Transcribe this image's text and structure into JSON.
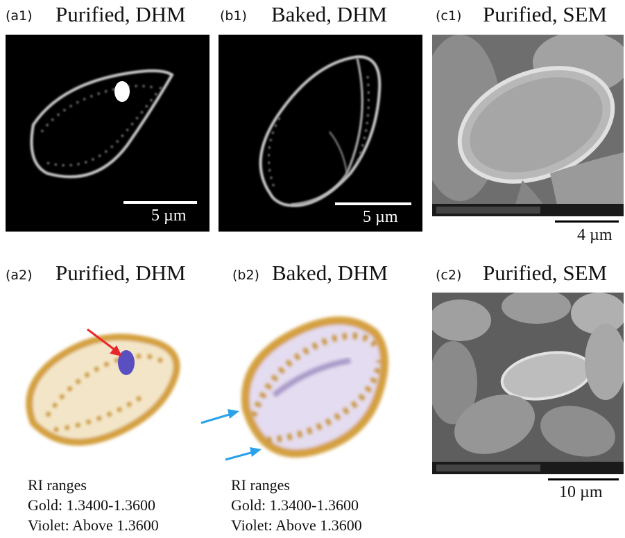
{
  "panels": {
    "a1": {
      "tag": "(a1)",
      "title": "Purified, DHM",
      "scale": "5 µm"
    },
    "b1": {
      "tag": "(b1)",
      "title": "Baked, DHM",
      "scale": "5 µm"
    },
    "c1": {
      "tag": "(c1)",
      "title": "Purified, SEM",
      "scale": "4 µm"
    },
    "a2": {
      "tag": "(a2)",
      "title": "Purified, DHM"
    },
    "b2": {
      "tag": "(b2)",
      "title": "Baked, DHM"
    },
    "c2": {
      "tag": "(c2)",
      "title": "Purified, SEM",
      "scale": "10 µm"
    }
  },
  "ri_a2": {
    "heading": "RI ranges",
    "gold": "Gold: 1.3400-1.3600",
    "violet": "Violet: Above 1.3600"
  },
  "ri_b2": {
    "heading": "RI ranges",
    "gold": "Gold: 1.3400-1.3600",
    "violet": "Violet: Above 1.3600"
  },
  "colors": {
    "gold": "#d4a040",
    "violet": "#5a4fc0",
    "red_arrow": "#e8262a",
    "blue_arrow": "#2aa2e8"
  }
}
